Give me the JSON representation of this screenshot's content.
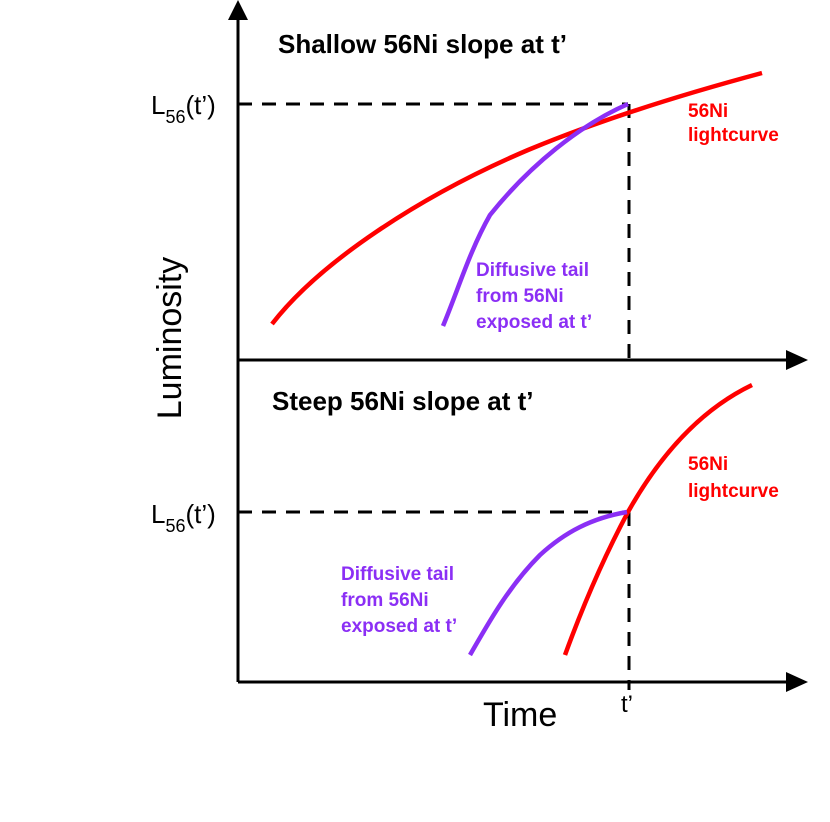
{
  "colors": {
    "ni56_curve": "#ff0000",
    "diffusive_tail": "#8b2ff5",
    "axes": "#000000"
  },
  "axes": {
    "ylabel": "Luminosity",
    "xlabel": "Time",
    "t_prime_tick": "t’"
  },
  "top_panel": {
    "title": "Shallow 56Ni slope at t’",
    "level_label_main": "L",
    "level_label_sub": "56",
    "level_label_arg": "(t’)",
    "red_label_line1": "56Ni",
    "red_label_line2": "lightcurve",
    "purple_label_line1": "Diffusive tail",
    "purple_label_line2": "from 56Ni",
    "purple_label_line3": "exposed at t’"
  },
  "bottom_panel": {
    "title": "Steep 56Ni slope at t’",
    "level_label_main": "L",
    "level_label_sub": "56",
    "level_label_arg": "(t’)",
    "red_label_line1": "56Ni",
    "red_label_line2": "lightcurve",
    "purple_label_line1": "Diffusive tail",
    "purple_label_line2": "from 56Ni",
    "purple_label_line3": "exposed at t’"
  }
}
